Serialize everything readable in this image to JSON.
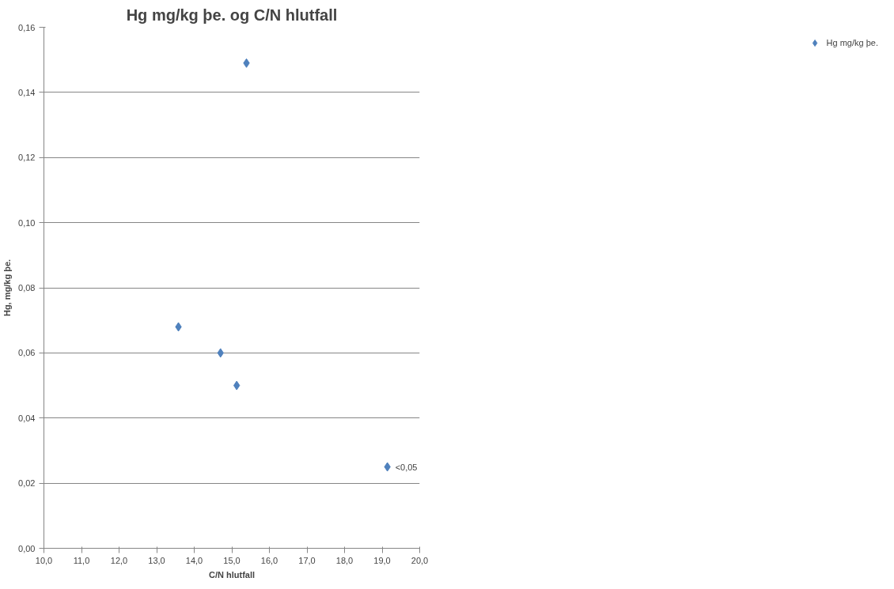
{
  "chart_data": {
    "type": "scatter",
    "title": "Hg mg/kg þe. og C/N hlutfall",
    "xlabel": "C/N hlutfall",
    "ylabel": "Hg, mg/kg þe.",
    "x": [
      15.39,
      13.58,
      14.7,
      15.13,
      19.14
    ],
    "series": [
      {
        "name": "Hg mg/kg þe.",
        "color": "#4f81bd",
        "values": [
          0.149,
          0.068,
          0.06,
          0.05,
          0.025
        ]
      }
    ],
    "annotations": [
      {
        "text": "<0,05",
        "x": 19.14,
        "y": 0.025
      }
    ],
    "xlim": [
      10,
      20
    ],
    "ylim": [
      0,
      0.16
    ],
    "xticks": [
      {
        "value": 10,
        "label": "10,0"
      },
      {
        "value": 11,
        "label": "11,0"
      },
      {
        "value": 12,
        "label": "12,0"
      },
      {
        "value": 13,
        "label": "13,0"
      },
      {
        "value": 14,
        "label": "14,0"
      },
      {
        "value": 15,
        "label": "15,0"
      },
      {
        "value": 16,
        "label": "16,0"
      },
      {
        "value": 17,
        "label": "17,0"
      },
      {
        "value": 18,
        "label": "18,0"
      },
      {
        "value": 19,
        "label": "19,0"
      },
      {
        "value": 20,
        "label": "20,0"
      }
    ],
    "yticks": [
      {
        "value": 0,
        "label": "0,00"
      },
      {
        "value": 0.02,
        "label": "0,02"
      },
      {
        "value": 0.04,
        "label": "0,04"
      },
      {
        "value": 0.06,
        "label": "0,06"
      },
      {
        "value": 0.08,
        "label": "0,08"
      },
      {
        "value": 0.1,
        "label": "0,10"
      },
      {
        "value": 0.12,
        "label": "0,12"
      },
      {
        "value": 0.14,
        "label": "0,14"
      },
      {
        "value": 0.16,
        "label": "0,16"
      }
    ],
    "grid": "y",
    "legend": "right",
    "marker": "diamond"
  }
}
